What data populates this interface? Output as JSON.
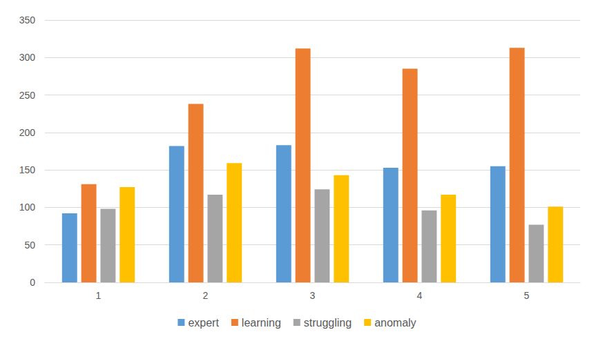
{
  "chart_data": {
    "type": "bar",
    "categories": [
      "1",
      "2",
      "3",
      "4",
      "5"
    ],
    "series": [
      {
        "name": "expert",
        "color": "#5b9bd5",
        "values": [
          92,
          182,
          183,
          153,
          155
        ]
      },
      {
        "name": "learning",
        "color": "#ed7d31",
        "values": [
          131,
          238,
          312,
          285,
          313
        ]
      },
      {
        "name": "struggling",
        "color": "#a5a5a5",
        "values": [
          98,
          117,
          124,
          96,
          77
        ]
      },
      {
        "name": "anomaly",
        "color": "#ffc000",
        "values": [
          127,
          159,
          143,
          117,
          101
        ]
      }
    ],
    "ylim": [
      0,
      350
    ],
    "yticks": [
      0,
      50,
      100,
      150,
      200,
      250,
      300,
      350
    ],
    "grid": true,
    "legend": "bottom"
  }
}
